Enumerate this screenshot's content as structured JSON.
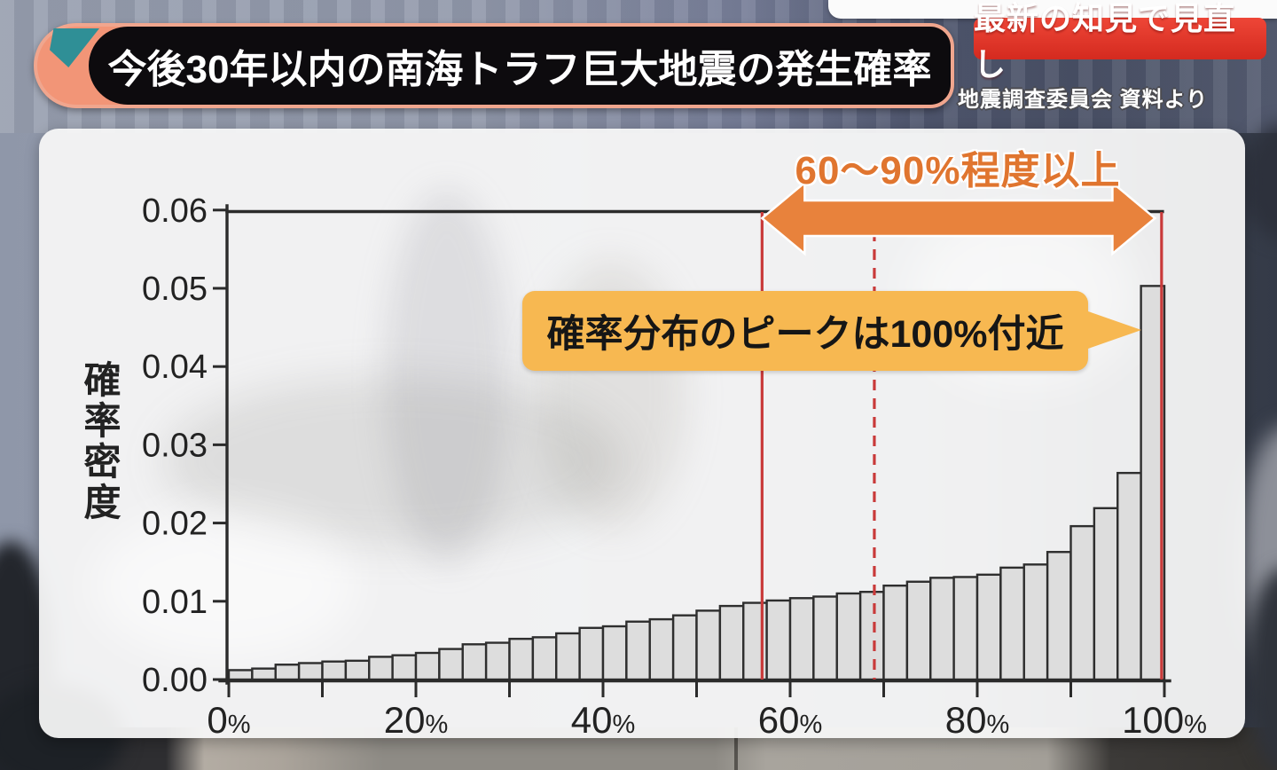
{
  "header": {
    "title": "今後30年以内の南海トラフ巨大地震の発生確率",
    "badge": "最新の知見で見直し",
    "source": "地震調査委員会 資料より"
  },
  "annotations": {
    "range_label": "60〜90%程度以上",
    "peak_label": "確率分布のピークは100%付近"
  },
  "colors": {
    "axis": "#2b2b2b",
    "bar_fill": "rgba(219,219,219,0.92)",
    "bar_stroke": "#2e2e2e",
    "reference_line": "#c93a3a",
    "arrow_fill": "#e8823c",
    "arrow_outline": "#ffffff",
    "tick_label": "#222222",
    "badge_red": "#d42a1f",
    "bubble_amber": "#f7b851",
    "accent_orange": "#e0752f"
  },
  "chart_data": {
    "type": "bar",
    "title": "今後30年以内の南海トラフ巨大地震の発生確率",
    "xlabel": "",
    "ylabel": "確率密度",
    "xlim_percent": [
      0,
      100
    ],
    "ylim": [
      0,
      0.06
    ],
    "grid": false,
    "x_tick_percents": [
      0,
      20,
      40,
      60,
      80,
      100
    ],
    "x_tick_labels": [
      "0%",
      "20%",
      "40%",
      "60%",
      "80%",
      "100%"
    ],
    "x_minor_tick_step_percent": 10,
    "y_ticks": [
      0,
      0.01,
      0.02,
      0.03,
      0.04,
      0.05,
      0.06
    ],
    "y_tick_labels": [
      "0.00",
      "0.01",
      "0.02",
      "0.03",
      "0.04",
      "0.05",
      "0.06"
    ],
    "bin_start_percent": 0,
    "bin_width_percent": 2.5,
    "values": [
      0.0012,
      0.0014,
      0.0019,
      0.0021,
      0.0023,
      0.0024,
      0.0029,
      0.0031,
      0.0034,
      0.0039,
      0.0045,
      0.0047,
      0.0052,
      0.0054,
      0.0059,
      0.0066,
      0.0068,
      0.0074,
      0.0077,
      0.0082,
      0.0088,
      0.0094,
      0.0098,
      0.0101,
      0.0104,
      0.0106,
      0.011,
      0.0112,
      0.012,
      0.0125,
      0.013,
      0.0131,
      0.0134,
      0.0143,
      0.0147,
      0.0163,
      0.0196,
      0.0219,
      0.0264,
      0.0503
    ],
    "reference_lines": [
      {
        "x_percent": 57.0,
        "style": "solid"
      },
      {
        "x_percent": 69.0,
        "style": "dashed"
      },
      {
        "x_percent": 99.7,
        "style": "solid"
      }
    ],
    "range_arrow": {
      "from_percent": 57.0,
      "to_percent": 99.0,
      "label": "60〜90%程度以上"
    },
    "peak_annotation": "確率分布のピークは100%付近",
    "legend": []
  }
}
